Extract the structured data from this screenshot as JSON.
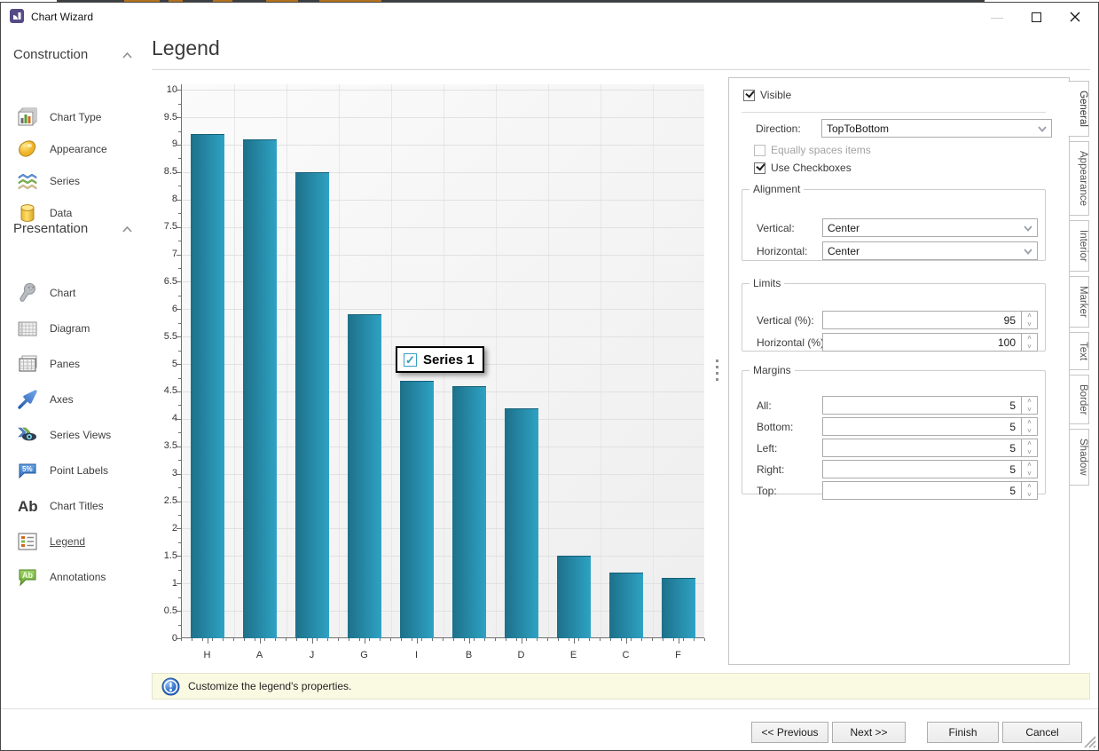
{
  "window": {
    "title": "Chart Wizard",
    "controls": {
      "minimize": "—",
      "close": "✕"
    }
  },
  "sidebar": {
    "sections": [
      {
        "label": "Construction",
        "items": [
          {
            "label": "Chart Type"
          },
          {
            "label": "Appearance"
          },
          {
            "label": "Series"
          },
          {
            "label": "Data"
          }
        ]
      },
      {
        "label": "Presentation",
        "items": [
          {
            "label": "Chart"
          },
          {
            "label": "Diagram"
          },
          {
            "label": "Panes"
          },
          {
            "label": "Axes"
          },
          {
            "label": "Series Views"
          },
          {
            "label": "Point Labels"
          },
          {
            "label": "Chart Titles"
          },
          {
            "label": "Legend",
            "selected": true
          },
          {
            "label": "Annotations"
          }
        ]
      }
    ]
  },
  "page": {
    "title": "Legend"
  },
  "chart_data": {
    "type": "bar",
    "categories": [
      "H",
      "A",
      "J",
      "G",
      "I",
      "B",
      "D",
      "E",
      "C",
      "F"
    ],
    "values": [
      9.2,
      9.1,
      8.5,
      5.9,
      4.7,
      4.6,
      4.2,
      1.5,
      1.2,
      1.1
    ],
    "title": "",
    "xlabel": "",
    "ylabel": "",
    "ylim": [
      0,
      10
    ],
    "ytick_step": 0.5,
    "grid": true,
    "legend_label": "Series 1",
    "legend_position": "floating-center",
    "bar_color_start": "#1d7089",
    "bar_color_end": "#2ea2c4"
  },
  "panel": {
    "visible_label": "Visible",
    "direction_label": "Direction:",
    "direction_value": "TopToBottom",
    "equally_label": "Equally spaces items",
    "use_checkboxes_label": "Use Checkboxes",
    "alignment": {
      "title": "Alignment",
      "vertical_label": "Vertical:",
      "vertical_value": "Center",
      "horizontal_label": "Horizontal:",
      "horizontal_value": "Center"
    },
    "limits": {
      "title": "Limits",
      "vertical_label": "Vertical (%):",
      "vertical_value": "95",
      "horizontal_label": "Horizontal (%):",
      "horizontal_value": "100"
    },
    "margins": {
      "title": "Margins",
      "rows": [
        {
          "label": "All:",
          "value": "5"
        },
        {
          "label": "Bottom:",
          "value": "5"
        },
        {
          "label": "Left:",
          "value": "5"
        },
        {
          "label": "Right:",
          "value": "5"
        },
        {
          "label": "Top:",
          "value": "5"
        }
      ]
    }
  },
  "tabs": [
    "General",
    "Appearance",
    "Interior",
    "Marker",
    "Text",
    "Border",
    "Shadow"
  ],
  "status": {
    "message": "Customize the legend's properties."
  },
  "footer": {
    "buttons": [
      "<< Previous",
      "Next >>",
      "Finish",
      "Cancel"
    ]
  },
  "colors": {
    "accent_teal": "#2ea2c4",
    "info_background": "#fafae3",
    "grid_line": "#e1e1e1"
  }
}
